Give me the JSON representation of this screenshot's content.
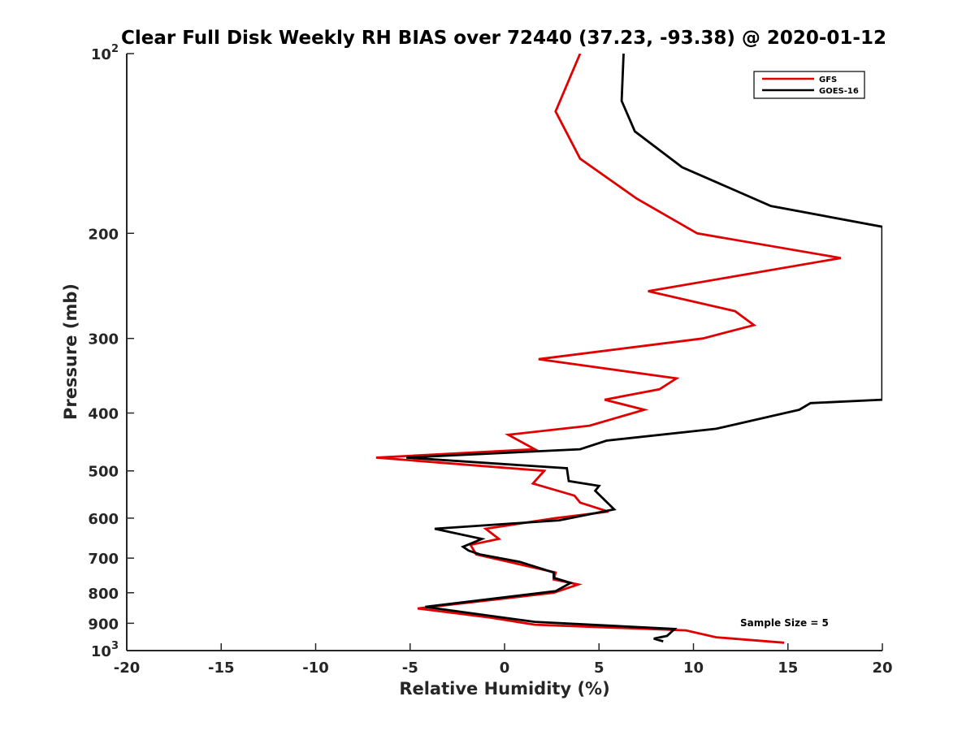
{
  "chart_data": {
    "type": "line",
    "title": "Clear Full Disk Weekly RH BIAS over 72440 (37.23, -93.38) @ 2020-01-12",
    "xlabel": "Relative Humidity (%)",
    "ylabel": "Pressure (mb)",
    "xlim": [
      -20,
      20
    ],
    "ylim": [
      100,
      1000
    ],
    "y_scale": "log",
    "y_reversed": true,
    "x_ticks": [
      "-20",
      "-15",
      "-10",
      "-5",
      "0",
      "5",
      "10",
      "15",
      "20"
    ],
    "x_tick_values": [
      -20,
      -15,
      -10,
      -5,
      0,
      5,
      10,
      15,
      20
    ],
    "y_ticks": [
      {
        "value": 100,
        "base": "10",
        "exp": "2"
      },
      {
        "value": 200,
        "base": "200",
        "exp": ""
      },
      {
        "value": 300,
        "base": "300",
        "exp": ""
      },
      {
        "value": 400,
        "base": "400",
        "exp": ""
      },
      {
        "value": 500,
        "base": "500",
        "exp": ""
      },
      {
        "value": 600,
        "base": "600",
        "exp": ""
      },
      {
        "value": 700,
        "base": "700",
        "exp": ""
      },
      {
        "value": 800,
        "base": "800",
        "exp": ""
      },
      {
        "value": 900,
        "base": "900",
        "exp": ""
      },
      {
        "value": 1000,
        "base": "10",
        "exp": "3"
      }
    ],
    "grid": false,
    "legend_position": "top-right",
    "annotation": "Sample Size = 5",
    "series": [
      {
        "name": "GFS",
        "color": "#e00000",
        "points": [
          [
            4.0,
            100
          ],
          [
            2.7,
            125
          ],
          [
            4.0,
            150
          ],
          [
            7.0,
            175
          ],
          [
            10.2,
            200
          ],
          [
            17.8,
            220
          ],
          [
            7.6,
            250
          ],
          [
            12.2,
            270
          ],
          [
            13.2,
            285
          ],
          [
            10.5,
            300
          ],
          [
            1.8,
            325
          ],
          [
            9.1,
            350
          ],
          [
            8.2,
            365
          ],
          [
            5.3,
            380
          ],
          [
            7.4,
            395
          ],
          [
            4.5,
            420
          ],
          [
            0.2,
            435
          ],
          [
            1.6,
            460
          ],
          [
            -6.8,
            475
          ],
          [
            2.1,
            500
          ],
          [
            1.5,
            525
          ],
          [
            3.7,
            550
          ],
          [
            4.0,
            565
          ],
          [
            5.5,
            585
          ],
          [
            2.7,
            600
          ],
          [
            -1.0,
            625
          ],
          [
            -0.3,
            650
          ],
          [
            -1.8,
            665
          ],
          [
            -1.5,
            690
          ],
          [
            2.7,
            740
          ],
          [
            2.6,
            760
          ],
          [
            3.9,
            775
          ],
          [
            2.6,
            800
          ],
          [
            -4.6,
            850
          ],
          [
            -0.8,
            880
          ],
          [
            1.6,
            905
          ],
          [
            9.6,
            925
          ],
          [
            11.2,
            950
          ],
          [
            14.8,
            970
          ]
        ]
      },
      {
        "name": "GOES-16",
        "color": "#000000",
        "points": [
          [
            6.3,
            100
          ],
          [
            6.2,
            120
          ],
          [
            6.9,
            135
          ],
          [
            9.4,
            155
          ],
          [
            14.1,
            180
          ],
          [
            20.0,
            195
          ],
          [
            20.0,
            380
          ],
          [
            16.2,
            385
          ],
          [
            15.6,
            395
          ],
          [
            11.2,
            425
          ],
          [
            5.4,
            445
          ],
          [
            4.0,
            460
          ],
          [
            -5.2,
            475
          ],
          [
            3.3,
            495
          ],
          [
            3.4,
            520
          ],
          [
            5.0,
            530
          ],
          [
            4.8,
            540
          ],
          [
            5.8,
            580
          ],
          [
            2.9,
            605
          ],
          [
            -3.7,
            625
          ],
          [
            -1.2,
            650
          ],
          [
            -2.2,
            670
          ],
          [
            -1.9,
            680
          ],
          [
            -1.3,
            690
          ],
          [
            0.8,
            710
          ],
          [
            2.6,
            740
          ],
          [
            2.6,
            755
          ],
          [
            3.5,
            770
          ],
          [
            2.7,
            795
          ],
          [
            -4.2,
            845
          ],
          [
            -0.7,
            875
          ],
          [
            1.6,
            895
          ],
          [
            9.0,
            920
          ],
          [
            8.6,
            945
          ],
          [
            7.9,
            955
          ],
          [
            8.4,
            965
          ]
        ]
      }
    ]
  }
}
